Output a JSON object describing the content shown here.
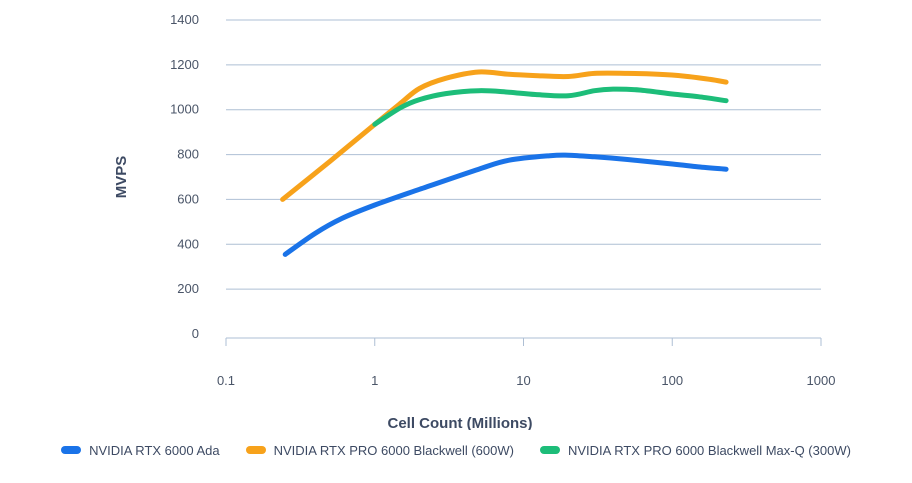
{
  "chart_data": {
    "type": "line",
    "title": "",
    "xlabel": "Cell Count (Millions)",
    "ylabel": "MVPS",
    "xscale": "log",
    "xlim": [
      0.1,
      1000
    ],
    "ylim": [
      0,
      1400
    ],
    "xticks": [
      0.1,
      1,
      10,
      100,
      1000
    ],
    "xtick_labels": [
      "0.1",
      "1",
      "10",
      "100",
      "1000"
    ],
    "yticks": [
      0,
      200,
      400,
      600,
      800,
      1000,
      1200,
      1400
    ],
    "ytick_labels": [
      "0",
      "200",
      "400",
      "600",
      "800",
      "1000",
      "1200",
      "1400"
    ],
    "grid": "horizontal",
    "legend_position": "bottom",
    "series": [
      {
        "name": "NVIDIA RTX 6000 Ada",
        "color": "#1a73e8",
        "points": [
          [
            0.25,
            355
          ],
          [
            0.4,
            450
          ],
          [
            0.6,
            515
          ],
          [
            1,
            575
          ],
          [
            2,
            645
          ],
          [
            5,
            735
          ],
          [
            8,
            775
          ],
          [
            15,
            795
          ],
          [
            20,
            797
          ],
          [
            30,
            790
          ],
          [
            50,
            778
          ],
          [
            100,
            758
          ],
          [
            150,
            745
          ],
          [
            230,
            735
          ]
        ]
      },
      {
        "name": "NVIDIA RTX PRO 6000 Blackwell (600W)",
        "color": "#f7a21b",
        "points": [
          [
            0.24,
            600
          ],
          [
            0.5,
            770
          ],
          [
            1,
            935
          ],
          [
            1.5,
            1030
          ],
          [
            2,
            1095
          ],
          [
            3,
            1140
          ],
          [
            5,
            1168
          ],
          [
            8,
            1158
          ],
          [
            12,
            1152
          ],
          [
            20,
            1148
          ],
          [
            30,
            1162
          ],
          [
            50,
            1162
          ],
          [
            80,
            1158
          ],
          [
            120,
            1150
          ],
          [
            180,
            1135
          ],
          [
            230,
            1123
          ]
        ]
      },
      {
        "name": "NVIDIA RTX PRO 6000 Blackwell Max-Q (300W)",
        "color": "#1dbd79",
        "points": [
          [
            1,
            935
          ],
          [
            1.5,
            1010
          ],
          [
            2,
            1045
          ],
          [
            3,
            1072
          ],
          [
            5,
            1085
          ],
          [
            8,
            1078
          ],
          [
            12,
            1068
          ],
          [
            20,
            1062
          ],
          [
            30,
            1085
          ],
          [
            40,
            1092
          ],
          [
            60,
            1088
          ],
          [
            100,
            1070
          ],
          [
            150,
            1058
          ],
          [
            230,
            1040
          ]
        ]
      }
    ]
  }
}
